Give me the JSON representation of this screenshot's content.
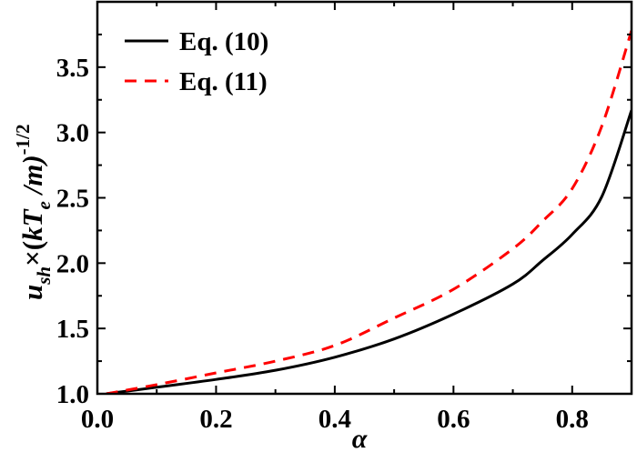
{
  "chart_data": {
    "type": "line",
    "title": "",
    "xlabel": "α",
    "ylabel": "u_sh × (kT_e/m)^-1/2",
    "ylabel_parts": {
      "u": "u",
      "sub_sh": "sh",
      "times": "×(",
      "kT": "kT",
      "sub_e": "e",
      "slash_m": " /m)",
      "sup": "-1/2"
    },
    "xlim": [
      0.0,
      0.9
    ],
    "ylim": [
      1.0,
      4.0
    ],
    "x_ticks": [
      "0.0",
      "0.2",
      "0.4",
      "0.6",
      "0.8"
    ],
    "x_tick_values": [
      0.0,
      0.2,
      0.4,
      0.6,
      0.8
    ],
    "y_ticks": [
      "1.0",
      "1.5",
      "2.0",
      "2.5",
      "3.0",
      "3.5"
    ],
    "y_tick_values": [
      1.0,
      1.5,
      2.0,
      2.5,
      3.0,
      3.5
    ],
    "grid": false,
    "legend_position": "upper left",
    "x": [
      0.015,
      0.1,
      0.2,
      0.3,
      0.4,
      0.5,
      0.6,
      0.7,
      0.75,
      0.8,
      0.85,
      0.9
    ],
    "series": [
      {
        "name": "Eq. (10)",
        "color": "#000000",
        "style": "solid",
        "values": [
          1.0,
          1.05,
          1.11,
          1.18,
          1.28,
          1.42,
          1.61,
          1.84,
          2.02,
          2.22,
          2.51,
          3.17
        ]
      },
      {
        "name": "Eq. (11)",
        "color": "#ff0000",
        "style": "dashed",
        "values": [
          1.0,
          1.07,
          1.16,
          1.25,
          1.37,
          1.58,
          1.8,
          2.11,
          2.32,
          2.57,
          3.05,
          3.78
        ]
      }
    ]
  }
}
